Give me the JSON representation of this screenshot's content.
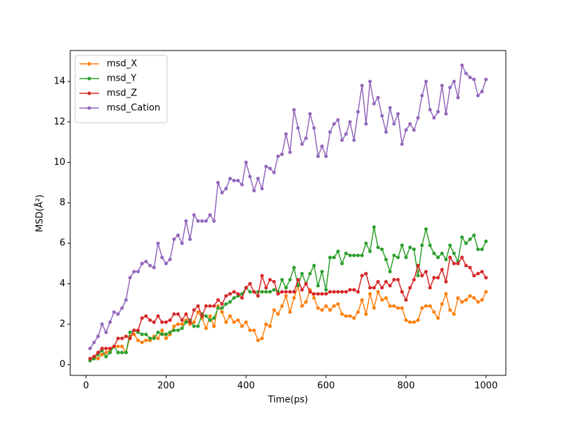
{
  "chart_data": {
    "type": "line",
    "xlabel": "Time(ps)",
    "ylabel": "MSD(Å²)",
    "x": [
      10,
      20,
      30,
      40,
      50,
      60,
      70,
      80,
      90,
      100,
      110,
      120,
      130,
      140,
      150,
      160,
      170,
      180,
      190,
      200,
      210,
      220,
      230,
      240,
      250,
      260,
      270,
      280,
      290,
      300,
      310,
      320,
      330,
      340,
      350,
      360,
      370,
      380,
      390,
      400,
      410,
      420,
      430,
      440,
      450,
      460,
      470,
      480,
      490,
      500,
      510,
      520,
      530,
      540,
      550,
      560,
      570,
      580,
      590,
      600,
      610,
      620,
      630,
      640,
      650,
      660,
      670,
      680,
      690,
      700,
      710,
      720,
      730,
      740,
      750,
      760,
      770,
      780,
      790,
      800,
      810,
      820,
      830,
      840,
      850,
      860,
      870,
      880,
      890,
      900,
      910,
      920,
      930,
      940,
      950,
      960,
      970,
      980,
      990,
      1000
    ],
    "series": [
      {
        "name": "msd_X",
        "color": "#ff7f0e",
        "values": [
          0.2,
          0.3,
          0.3,
          0.5,
          0.6,
          0.7,
          0.9,
          0.9,
          0.9,
          0.6,
          1.4,
          1.5,
          1.2,
          1.1,
          1.2,
          1.2,
          1.4,
          1.3,
          1.7,
          1.3,
          1.5,
          1.9,
          2.0,
          2.0,
          2.2,
          2.0,
          2.1,
          2.6,
          2.3,
          1.8,
          2.4,
          1.9,
          2.9,
          2.6,
          2.1,
          2.4,
          2.1,
          2.2,
          1.9,
          2.1,
          1.7,
          1.7,
          1.2,
          1.3,
          2.0,
          1.9,
          2.7,
          2.5,
          2.9,
          3.4,
          2.6,
          3.3,
          3.9,
          2.9,
          3.1,
          3.7,
          3.3,
          2.8,
          2.7,
          2.9,
          2.7,
          2.9,
          3.0,
          2.5,
          2.4,
          2.4,
          2.3,
          2.6,
          3.2,
          2.5,
          3.5,
          2.8,
          3.6,
          3.2,
          3.3,
          2.9,
          2.9,
          2.8,
          2.8,
          2.2,
          2.1,
          2.1,
          2.2,
          2.8,
          2.9,
          2.9,
          2.6,
          2.3,
          3.0,
          3.5,
          2.7,
          2.5,
          3.3,
          3.1,
          3.2,
          3.4,
          3.3,
          3.1,
          3.2,
          3.6
        ]
      },
      {
        "name": "msd_Y",
        "color": "#2ca02c",
        "values": [
          0.2,
          0.3,
          0.5,
          0.7,
          0.4,
          0.6,
          0.9,
          0.6,
          0.6,
          0.6,
          1.6,
          1.7,
          1.6,
          1.5,
          1.5,
          1.3,
          1.3,
          1.6,
          1.5,
          1.5,
          1.6,
          1.7,
          1.7,
          1.8,
          2.1,
          2.2,
          1.9,
          1.9,
          2.5,
          2.4,
          2.2,
          2.3,
          2.8,
          2.8,
          3.0,
          3.1,
          3.3,
          3.4,
          3.5,
          3.8,
          3.6,
          3.6,
          3.6,
          3.6,
          3.6,
          3.6,
          3.7,
          3.6,
          4.2,
          3.8,
          4.2,
          4.8,
          3.9,
          4.5,
          4.0,
          4.5,
          4.9,
          3.9,
          4.6,
          3.7,
          5.3,
          5.3,
          5.6,
          5.0,
          5.5,
          5.4,
          5.4,
          5.4,
          5.4,
          6.0,
          5.6,
          6.8,
          5.8,
          5.7,
          5.2,
          4.6,
          5.4,
          5.3,
          5.9,
          5.3,
          5.8,
          5.7,
          4.4,
          5.9,
          6.7,
          5.9,
          5.5,
          5.3,
          5.5,
          5.2,
          5.9,
          5.5,
          5.1,
          6.3,
          6.0,
          6.2,
          6.4,
          5.7,
          5.7,
          6.1
        ]
      },
      {
        "name": "msd_Z",
        "color": "#d62728",
        "values": [
          0.3,
          0.4,
          0.6,
          0.8,
          0.8,
          0.8,
          0.9,
          1.3,
          1.3,
          1.4,
          1.3,
          1.7,
          1.7,
          2.3,
          2.4,
          2.2,
          2.1,
          2.4,
          2.1,
          2.1,
          2.2,
          2.5,
          2.5,
          2.2,
          2.5,
          2.1,
          2.7,
          2.9,
          2.4,
          2.9,
          2.9,
          2.9,
          3.2,
          3.0,
          3.4,
          3.5,
          3.6,
          3.5,
          3.3,
          3.8,
          4.0,
          3.6,
          3.4,
          4.4,
          3.8,
          4.2,
          4.1,
          3.5,
          3.6,
          3.6,
          3.6,
          3.6,
          4.2,
          3.7,
          4.0,
          3.6,
          3.5,
          3.5,
          3.5,
          3.5,
          3.6,
          3.6,
          3.6,
          3.6,
          3.6,
          3.7,
          3.7,
          3.6,
          4.4,
          4.5,
          3.8,
          3.8,
          4.1,
          3.8,
          4.1,
          3.9,
          4.2,
          4.2,
          3.6,
          3.2,
          3.8,
          4.2,
          4.9,
          4.4,
          4.6,
          3.8,
          4.3,
          4.3,
          4.7,
          4.1,
          5.3,
          5.0,
          5.0,
          5.3,
          4.9,
          4.8,
          4.4,
          4.5,
          4.6,
          4.3
        ]
      },
      {
        "name": "msd_Cation",
        "color": "#9467bd",
        "values": [
          0.8,
          1.1,
          1.4,
          2.0,
          1.6,
          2.1,
          2.6,
          2.5,
          2.8,
          3.2,
          4.3,
          4.6,
          4.6,
          5.0,
          5.1,
          4.9,
          4.8,
          6.0,
          5.3,
          5.0,
          5.2,
          6.2,
          6.4,
          6.0,
          7.1,
          6.2,
          7.4,
          7.1,
          7.1,
          7.1,
          7.4,
          7.1,
          9.0,
          8.5,
          8.7,
          9.2,
          9.1,
          9.1,
          8.9,
          10.0,
          9.3,
          8.6,
          9.2,
          8.7,
          9.8,
          9.7,
          9.5,
          10.3,
          10.4,
          11.4,
          10.5,
          12.6,
          11.7,
          10.9,
          11.2,
          12.4,
          11.7,
          10.3,
          10.8,
          10.3,
          11.5,
          11.9,
          12.1,
          11.1,
          11.4,
          12.0,
          11.1,
          12.5,
          13.8,
          11.9,
          14.0,
          12.9,
          13.2,
          12.3,
          11.5,
          12.7,
          11.9,
          12.4,
          10.9,
          11.6,
          11.9,
          11.6,
          12.2,
          13.3,
          14.0,
          12.6,
          12.2,
          12.5,
          13.8,
          12.4,
          13.7,
          14.0,
          13.2,
          14.8,
          14.4,
          14.2,
          14.1,
          13.3,
          13.5,
          14.1
        ]
      }
    ],
    "xlim": [
      -39.5,
      1049.5
    ],
    "xticks": [
      0,
      200,
      400,
      600,
      800,
      1000
    ],
    "ylim": [
      -0.53,
      15.53
    ],
    "yticks": [
      0,
      2,
      4,
      6,
      8,
      10,
      12,
      14
    ],
    "legend": "upper left"
  }
}
